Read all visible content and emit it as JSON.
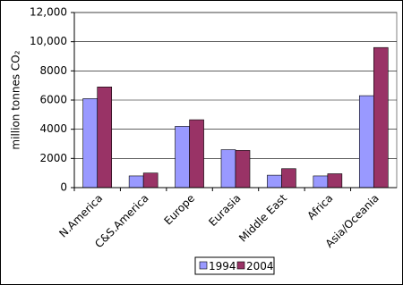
{
  "chart_data": {
    "type": "bar",
    "y_label": "million tonnes CO₂",
    "categories": [
      "N.America",
      "C&S.America",
      "Europe",
      "Eurasia",
      "Middle East",
      "Africa",
      "Asia/Oceania"
    ],
    "series": [
      {
        "name": "1994",
        "color": "#9999ff",
        "values": [
          6100,
          800,
          4200,
          2600,
          850,
          800,
          6300
        ]
      },
      {
        "name": "2004",
        "color": "#993366",
        "values": [
          6900,
          1000,
          4650,
          2550,
          1300,
          950,
          9600
        ]
      }
    ],
    "ylim": [
      0,
      12000
    ],
    "yticks": [
      0,
      2000,
      4000,
      6000,
      8000,
      {
        "value": 10000,
        "label": "10,000"
      },
      {
        "value": 12000,
        "label": "12,000"
      }
    ],
    "grid": true,
    "legend": "bottom"
  }
}
